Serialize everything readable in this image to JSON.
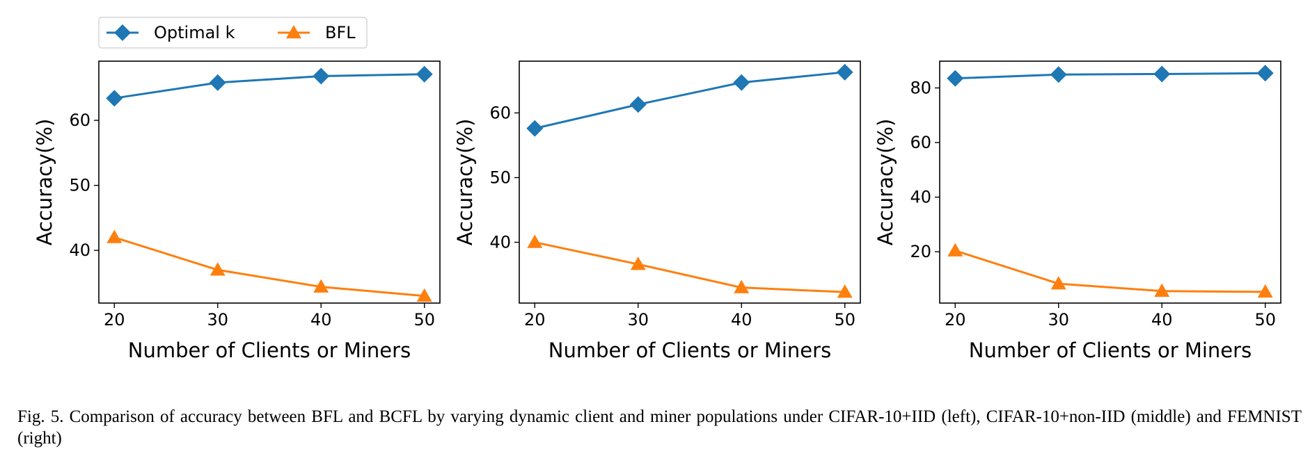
{
  "legend": {
    "entries": [
      {
        "label": "Optimal k",
        "color": "#1f77b4",
        "marker": "diamond"
      },
      {
        "label": "BFL",
        "color": "#ff7f0e",
        "marker": "triangle"
      }
    ]
  },
  "caption": "Fig. 5.  Comparison of accuracy between BFL and BCFL by varying dynamic client and miner populations under CIFAR-10+IID (left), CIFAR-10+non-IID (middle) and FEMNIST (right)",
  "chart_data": [
    {
      "type": "line",
      "title": "",
      "xlabel": "Number of Clients or Miners",
      "ylabel": "Accuracy(%)",
      "x": [
        20,
        30,
        40,
        50
      ],
      "xticks": [
        20,
        30,
        40,
        50
      ],
      "xlim": [
        18.5,
        51.5
      ],
      "yticks": [
        40,
        50,
        60
      ],
      "ylim": [
        31.9,
        69.1
      ],
      "grid": false,
      "legend": "above-left",
      "series": [
        {
          "name": "Optimal k",
          "color": "#1f77b4",
          "marker": "diamond",
          "values": [
            63.4,
            65.8,
            66.8,
            67.1
          ]
        },
        {
          "name": "BFL",
          "color": "#ff7f0e",
          "marker": "triangle",
          "values": [
            42.0,
            37.0,
            34.4,
            33.0
          ]
        }
      ]
    },
    {
      "type": "line",
      "title": "",
      "xlabel": "Number of Clients or Miners",
      "ylabel": "Accuracy(%)",
      "x": [
        20,
        30,
        40,
        50
      ],
      "xticks": [
        20,
        30,
        40,
        50
      ],
      "xlim": [
        18.5,
        51.5
      ],
      "yticks": [
        40,
        50,
        60
      ],
      "ylim": [
        30.6,
        68.0
      ],
      "grid": false,
      "series": [
        {
          "name": "Optimal k",
          "color": "#1f77b4",
          "marker": "diamond",
          "values": [
            57.6,
            61.3,
            64.7,
            66.3
          ]
        },
        {
          "name": "BFL",
          "color": "#ff7f0e",
          "marker": "triangle",
          "values": [
            40.0,
            36.6,
            33.0,
            32.3
          ]
        }
      ]
    },
    {
      "type": "line",
      "title": "",
      "xlabel": "Number of Clients or Miners",
      "ylabel": "Accuracy(%)",
      "x": [
        20,
        30,
        40,
        50
      ],
      "xticks": [
        20,
        30,
        40,
        50
      ],
      "xlim": [
        18.5,
        51.5
      ],
      "yticks": [
        20,
        40,
        60,
        80
      ],
      "ylim": [
        1.2,
        89.8
      ],
      "grid": false,
      "series": [
        {
          "name": "Optimal k",
          "color": "#1f77b4",
          "marker": "diamond",
          "values": [
            83.5,
            84.9,
            85.1,
            85.4
          ]
        },
        {
          "name": "BFL",
          "color": "#ff7f0e",
          "marker": "triangle",
          "values": [
            20.4,
            8.3,
            5.6,
            5.3
          ]
        }
      ]
    }
  ]
}
